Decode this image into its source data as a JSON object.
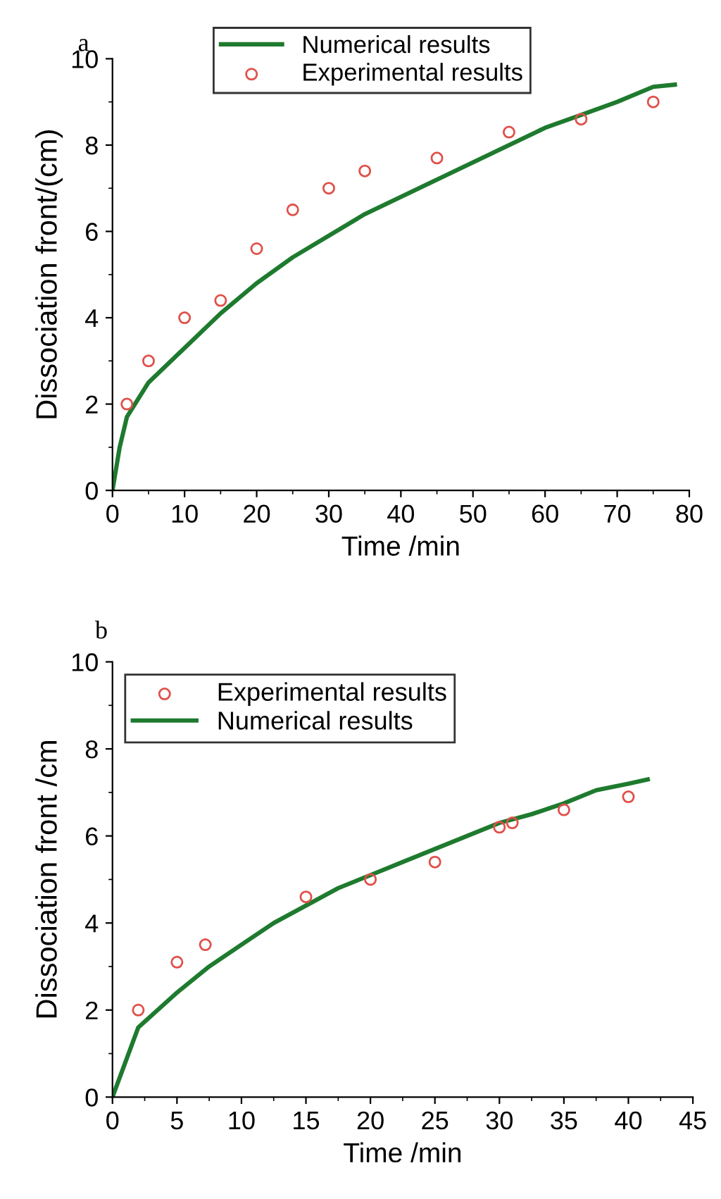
{
  "chart_data": [
    {
      "type": "line",
      "title": "a",
      "xlabel": "Time /min",
      "ylabel": "Dissociation front/(cm)",
      "xlim": [
        0,
        80
      ],
      "xticks": [
        0,
        10,
        20,
        30,
        40,
        50,
        60,
        70,
        80
      ],
      "ylim": [
        0,
        10
      ],
      "yticks": [
        0,
        2,
        4,
        6,
        8,
        10
      ],
      "legend": "top",
      "grid": false,
      "series": [
        {
          "name": "Numerical results",
          "color": "#1e7a2e",
          "line_style": "solid",
          "marker": "none",
          "x": [
            0,
            1,
            2,
            5,
            10,
            15,
            20,
            25,
            30,
            35,
            40,
            45,
            50,
            55,
            60,
            65,
            70,
            75,
            78
          ],
          "values": [
            0,
            1,
            1.7,
            2.5,
            3.3,
            4.1,
            4.8,
            5.4,
            5.9,
            6.4,
            6.8,
            7.2,
            7.6,
            8.0,
            8.4,
            8.7,
            9.0,
            9.35,
            9.4
          ]
        },
        {
          "name": "Experimental results",
          "type": "scatter",
          "color": "#e0504a",
          "marker": "circle",
          "x": [
            2,
            5,
            10,
            15,
            20,
            25,
            30,
            35,
            45,
            55,
            65,
            75
          ],
          "values": [
            2,
            3,
            4,
            4.4,
            5.6,
            6.5,
            7,
            7.4,
            7.7,
            8.3,
            8.6,
            9.0
          ]
        }
      ]
    },
    {
      "type": "line",
      "title": "b",
      "xlabel": "Time /min",
      "ylabel": "Dissociation front /cm",
      "xlim": [
        0,
        45
      ],
      "xticks": [
        0,
        5,
        10,
        15,
        20,
        25,
        30,
        35,
        40,
        45
      ],
      "ylim": [
        0,
        10
      ],
      "yticks": [
        0,
        2,
        4,
        6,
        8,
        10
      ],
      "legend": "top left",
      "grid": false,
      "series": [
        {
          "name": "Experimental results",
          "type": "scatter",
          "color": "#e0504a",
          "marker": "circle",
          "x": [
            2,
            5,
            7.2,
            15,
            20,
            25,
            30,
            31,
            35,
            40
          ],
          "values": [
            2,
            3.1,
            3.5,
            4.6,
            5.0,
            5.4,
            6.2,
            6.3,
            6.6,
            6.9
          ]
        },
        {
          "name": "Numerical results",
          "color": "#1e7a2e",
          "line_style": "solid",
          "marker": "none",
          "x": [
            0,
            1,
            2,
            5,
            7.5,
            10,
            12.5,
            15,
            17.5,
            20,
            22.5,
            25,
            27.5,
            30,
            32.5,
            35,
            37.5,
            40,
            41.5
          ],
          "values": [
            0,
            0.8,
            1.6,
            2.4,
            3.0,
            3.5,
            4.0,
            4.4,
            4.8,
            5.1,
            5.4,
            5.7,
            6.0,
            6.3,
            6.5,
            6.75,
            7.05,
            7.2,
            7.3
          ]
        }
      ]
    }
  ]
}
